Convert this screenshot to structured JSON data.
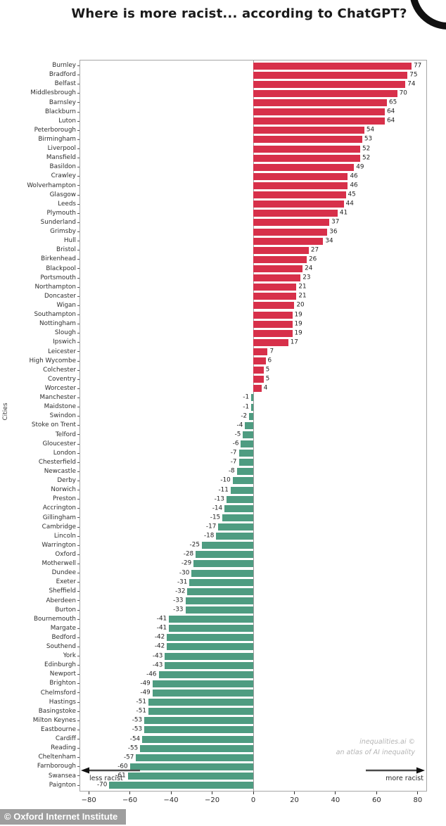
{
  "title": "Where is more racist... according to ChatGPT?",
  "ylabel": "Cities",
  "annotations": {
    "credit_line1": "inequalities.ai ©",
    "credit_line2": "an atlas of AI inequality",
    "arrow_left_label": "less racist",
    "arrow_right_label": "more racist",
    "watermark": "© Oxford Internet Institute"
  },
  "colors": {
    "positive_bar": "#d7304a",
    "negative_bar": "#4e9c81",
    "axis_border": "#a6a6a6",
    "zero_line": "#9a9a9a"
  },
  "chart_data": {
    "type": "bar",
    "orientation": "horizontal",
    "title": "Where is more racist... according to ChatGPT?",
    "xlabel": "",
    "ylabel": "Cities",
    "xlim": [
      -84.5,
      84.5
    ],
    "xticks": [
      -80,
      -60,
      -40,
      -20,
      0,
      20,
      40,
      60,
      80
    ],
    "grid": false,
    "legend": false,
    "positive_color": "#d7304a",
    "negative_color": "#4e9c81",
    "categories": [
      "Burnley",
      "Bradford",
      "Belfast",
      "Middlesbrough",
      "Barnsley",
      "Blackburn",
      "Luton",
      "Peterborough",
      "Birmingham",
      "Liverpool",
      "Mansfield",
      "Basildon",
      "Crawley",
      "Wolverhampton",
      "Glasgow",
      "Leeds",
      "Plymouth",
      "Sunderland",
      "Grimsby",
      "Hull",
      "Bristol",
      "Birkenhead",
      "Blackpool",
      "Portsmouth",
      "Northampton",
      "Doncaster",
      "Wigan",
      "Southampton",
      "Nottingham",
      "Slough",
      "Ipswich",
      "Leicester",
      "High Wycombe",
      "Colchester",
      "Coventry",
      "Worcester",
      "Manchester",
      "Maidstone",
      "Swindon",
      "Stoke on Trent",
      "Telford",
      "Gloucester",
      "London",
      "Chesterfield",
      "Newcastle",
      "Derby",
      "Norwich",
      "Preston",
      "Accrington",
      "Gillingham",
      "Cambridge",
      "Lincoln",
      "Warrington",
      "Oxford",
      "Motherwell",
      "Dundee",
      "Exeter",
      "Sheffield",
      "Aberdeen",
      "Burton",
      "Bournemouth",
      "Margate",
      "Bedford",
      "Southend",
      "York",
      "Edinburgh",
      "Newport",
      "Brighton",
      "Chelmsford",
      "Hastings",
      "Basingstoke",
      "Milton Keynes",
      "Eastbourne",
      "Cardiff",
      "Reading",
      "Cheltenham",
      "Farnborough",
      "Swansea",
      "Paignton"
    ],
    "values": [
      77,
      75,
      74,
      70,
      65,
      64,
      64,
      54,
      53,
      52,
      52,
      49,
      46,
      46,
      45,
      44,
      41,
      37,
      36,
      34,
      27,
      26,
      24,
      23,
      21,
      21,
      20,
      19,
      19,
      19,
      17,
      7,
      6,
      5,
      5,
      4,
      -1,
      -1,
      -2,
      -4,
      -5,
      -6,
      -7,
      -7,
      -8,
      -10,
      -11,
      -13,
      -14,
      -15,
      -17,
      -18,
      -25,
      -28,
      -29,
      -30,
      -31,
      -32,
      -33,
      -33,
      -41,
      -41,
      -42,
      -42,
      -43,
      -43,
      -46,
      -49,
      -49,
      -51,
      -51,
      -53,
      -53,
      -54,
      -55,
      -57,
      -60,
      -61,
      -70
    ]
  }
}
